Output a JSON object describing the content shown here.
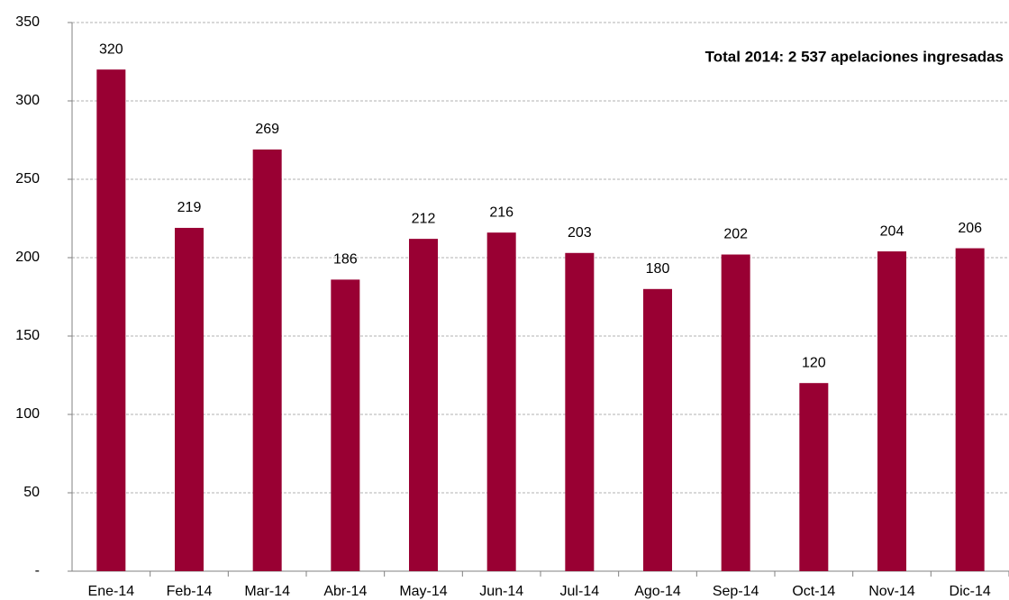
{
  "chart_data": {
    "type": "bar",
    "annotation": "Total 2014: 2 537 apelaciones ingresadas",
    "categories": [
      "Ene-14",
      "Feb-14",
      "Mar-14",
      "Abr-14",
      "May-14",
      "Jun-14",
      "Jul-14",
      "Ago-14",
      "Sep-14",
      "Oct-14",
      "Nov-14",
      "Dic-14"
    ],
    "values": [
      320,
      219,
      269,
      186,
      212,
      216,
      203,
      180,
      202,
      120,
      204,
      206
    ],
    "color": "#990033",
    "ylim": [
      0,
      350
    ],
    "yticks": [
      {
        "value": 0,
        "label": "-"
      },
      50,
      100,
      150,
      200,
      250,
      300,
      350
    ],
    "grid": true
  }
}
